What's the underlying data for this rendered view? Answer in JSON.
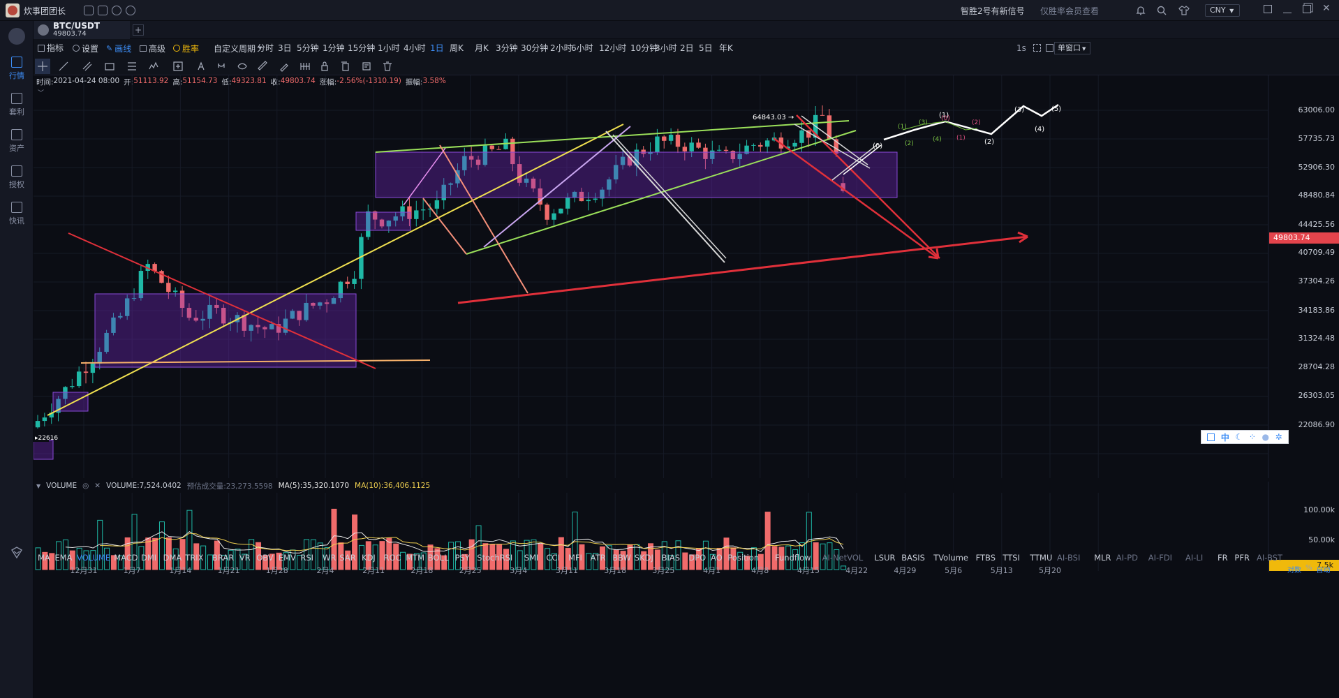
{
  "titlebar": {
    "app_name": "炊事团团长",
    "signal_text": "智胜2号有新信号",
    "member_text": "仅胜率会员查看",
    "currency": "CNY"
  },
  "leftnav": {
    "items": [
      {
        "label": "行情",
        "icon": "market-icon"
      },
      {
        "label": "套利",
        "icon": "arbitrage-icon"
      },
      {
        "label": "资产",
        "icon": "assets-icon"
      },
      {
        "label": "授权",
        "icon": "authorize-icon"
      },
      {
        "label": "快讯",
        "icon": "news-icon"
      }
    ]
  },
  "tab": {
    "symbol": "BTC/USDT",
    "price": "49803.74"
  },
  "toolbar": {
    "indicator": "指标",
    "settings": "设置",
    "draw": "画线",
    "advanced": "高级",
    "winrate": "胜率",
    "custom_period": "自定义周期",
    "periods": [
      "分时",
      "3日",
      "5分钟",
      "1分钟",
      "15分钟",
      "1小时",
      "4小时",
      "1日",
      "周K",
      "月K",
      "3分钟",
      "30分钟",
      "2小时",
      "6小时",
      "12小时",
      "10分钟",
      "3小时",
      "2日",
      "5日",
      "年K"
    ],
    "active_period": "1日",
    "interval": "1s",
    "window_mode": "单窗口"
  },
  "ohlc": {
    "time_label": "时间:",
    "time": "2021-04-24 08:00",
    "open_label": "开:",
    "open": "51113.92",
    "high_label": "高:",
    "high": "51154.73",
    "low_label": "低:",
    "low": "49323.81",
    "close_label": "收:",
    "close": "49803.74",
    "change_label": "涨幅:",
    "change": "-2.56%(-1310.19)",
    "amp_label": "振幅:",
    "amp": "3.58%"
  },
  "price_axis": [
    "63006.00",
    "57735.73",
    "52906.30",
    "48480.84",
    "44425.56",
    "40709.49",
    "37304.26",
    "34183.86",
    "31324.48",
    "28704.28",
    "26303.05",
    "22086.90"
  ],
  "current_price_tag": "49803.74",
  "annotations": {
    "high_marker": "64843.03",
    "low_marker": "22616",
    "waves_white": [
      "(1)",
      "(2)",
      "(3)",
      "(4)",
      "(5)",
      "(0)"
    ],
    "waves_green": [
      "(1)",
      "(2)",
      "(3)",
      "(4)"
    ],
    "waves_pink": [
      "(1)",
      "(2)",
      "(0)"
    ]
  },
  "volume_panel": {
    "name": "VOLUME",
    "volume": "VOLUME:7,524.0402",
    "estimate": "预估成交量:23,273.5598",
    "ma5": "MA(5):35,320.1070",
    "ma10": "MA(10):36,406.1125",
    "axis": [
      "100.00k",
      "50.00k"
    ],
    "current_tag": "7.5k"
  },
  "indicators": [
    "MA",
    "EMA",
    "VOLUME",
    "MACD",
    "DMI",
    "DMA",
    "TRIX",
    "BRAR",
    "VR",
    "OBV",
    "EMV",
    "RSI",
    "WR",
    "SAR",
    "KDJ",
    "ROC",
    "MTM",
    "BOLL",
    "PSY",
    "StochRSI",
    "SMI",
    "CCI",
    "MFI",
    "ATR",
    "BBW",
    "SKDJ",
    "BIAS",
    "DPO",
    "AO",
    "Position",
    "Fundflow",
    "AI-NetVOL",
    "LSUR",
    "BASIS",
    "TVolume",
    "FTBS",
    "TTSI",
    "TTMU",
    "AI-BSI",
    "MLR",
    "AI-PD",
    "AI-FDI",
    "AI-LI",
    "FR",
    "PFR",
    "AI-BST"
  ],
  "active_indicator": "VOLUME",
  "bottom_right": {
    "log": "对数",
    "pct": "%",
    "auto": "自动"
  },
  "date_axis": [
    "12月31",
    "1月7",
    "1月14",
    "1月21",
    "1月28",
    "2月4",
    "2月11",
    "2月18",
    "2月25",
    "3月4",
    "3月11",
    "3月18",
    "3月25",
    "4月1",
    "4月8",
    "4月15",
    "4月22",
    "4月29",
    "5月6",
    "5月13",
    "5月20"
  ],
  "float_toolbar": {
    "lang": "中"
  },
  "colors": {
    "up": "#1fb8a6",
    "down": "#f06b6b",
    "accent": "#3d8df5",
    "bg": "#0b0d14"
  },
  "chart_data": {
    "type": "candlestick",
    "title": "BTC/USDT",
    "period": "1日",
    "ylim": [
      22086.9,
      65000
    ],
    "y_scale": "log",
    "last": {
      "time": "2021-04-24 08:00",
      "open": 51113.92,
      "high": 51154.73,
      "low": 49323.81,
      "close": 49803.74
    },
    "key_levels": [
      22616,
      49803.74,
      64843.03
    ],
    "volume_last": 7524.0402,
    "volume_ma5": 35320.107,
    "volume_ma10": 36406.1125
  }
}
